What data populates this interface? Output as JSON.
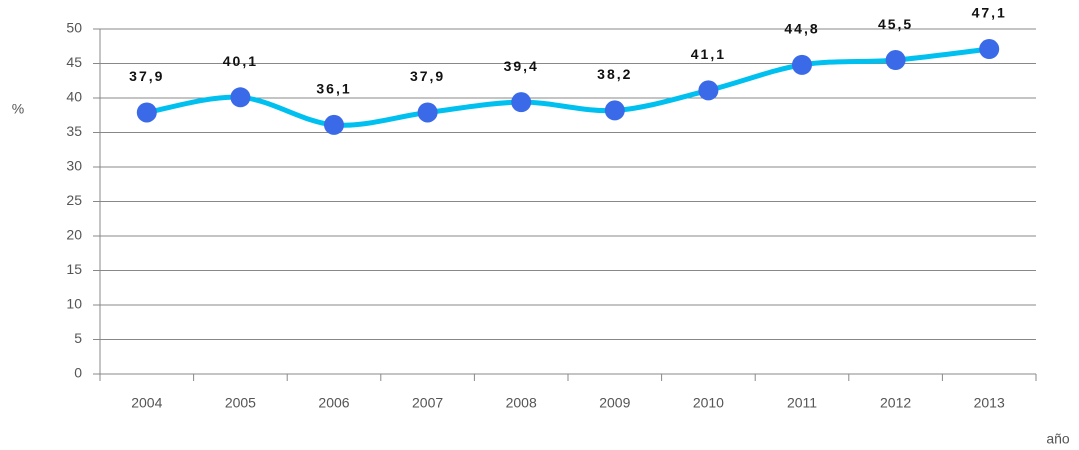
{
  "chart_data": {
    "type": "line",
    "categories": [
      "2004",
      "2005",
      "2006",
      "2007",
      "2008",
      "2009",
      "2010",
      "2011",
      "2012",
      "2013"
    ],
    "series": [
      {
        "values": [
          37.9,
          40.1,
          36.1,
          37.9,
          39.4,
          38.2,
          41.1,
          44.8,
          45.5,
          47.1
        ],
        "value_labels": [
          "37,9",
          "40,1",
          "36,1",
          "37,9",
          "39,4",
          "38,2",
          "41,1",
          "44,8",
          "45,5",
          "47,1"
        ],
        "color": "#00c0f0",
        "marker_color": "#3b6ae8"
      }
    ],
    "ylabel": "%",
    "xlabel": "año",
    "ylim": [
      0,
      50
    ],
    "yticks": [
      0,
      5,
      10,
      15,
      20,
      25,
      30,
      35,
      40,
      45,
      50
    ],
    "grid": true
  }
}
